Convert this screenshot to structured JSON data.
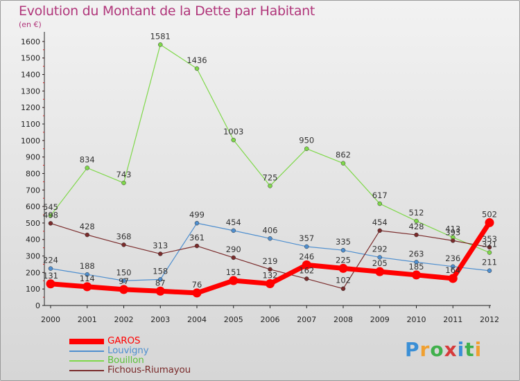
{
  "title": "Evolution du Montant de la Dette par Habitant",
  "subtitle": "(en €)",
  "logo": {
    "letters": [
      "P",
      "r",
      "o",
      "x",
      "i",
      "t",
      "i"
    ],
    "colors": [
      "#3a8fd6",
      "#f0a030",
      "#3fb04b",
      "#d63a3a",
      "#3a8fd6",
      "#3fb04b",
      "#f0a030"
    ]
  },
  "chart_data": {
    "type": "line",
    "title": "Evolution du Montant de la Dette par Habitant",
    "ylabel": "(en €)",
    "xlabel": "",
    "x": [
      "2000",
      "2001",
      "2002",
      "2003",
      "2004",
      "2005",
      "2006",
      "2007",
      "2008",
      "2009",
      "2010",
      "2011",
      "2012"
    ],
    "ylim": [
      0,
      1650
    ],
    "yticks": [
      0,
      100,
      200,
      300,
      400,
      500,
      600,
      700,
      800,
      900,
      1000,
      1100,
      1200,
      1300,
      1400,
      1500,
      1600
    ],
    "grid": false,
    "legend_position": "bottom-left",
    "series": [
      {
        "name": "GAROS",
        "color": "#ff0000",
        "width": 7,
        "marker": 6.5,
        "emphasis": true,
        "values": [
          131,
          114,
          97,
          87,
          76,
          151,
          132,
          246,
          225,
          205,
          185,
          164,
          502
        ]
      },
      {
        "name": "Louvigny",
        "color": "#4f8fcf",
        "width": 1.2,
        "marker": 3,
        "values": [
          224,
          188,
          150,
          158,
          499,
          454,
          406,
          357,
          335,
          292,
          263,
          236,
          211
        ]
      },
      {
        "name": "Bouillon",
        "color": "#7fd84a",
        "width": 1.2,
        "marker": 3,
        "values": [
          545,
          834,
          743,
          1581,
          1436,
          1003,
          725,
          950,
          862,
          617,
          512,
          413,
          321
        ]
      },
      {
        "name": "Fichous-Riumayou",
        "color": "#7a2b2b",
        "width": 1.2,
        "marker": 3,
        "values": [
          498,
          428,
          368,
          313,
          361,
          290,
          219,
          162,
          102,
          454,
          428,
          393,
          353
        ]
      }
    ],
    "data_labels": [
      {
        "series": "GAROS",
        "labels": [
          "131",
          "114",
          "97",
          "87",
          "76",
          "151",
          "132",
          "246",
          "225",
          "205",
          "185",
          "164",
          "502"
        ]
      },
      {
        "series": "Louvigny",
        "labels": [
          "224",
          "188",
          "150",
          "158",
          "499",
          "454",
          "406",
          "357",
          "335",
          "292",
          "263",
          "236",
          "211"
        ]
      },
      {
        "series": "Bouillon",
        "labels": [
          "545",
          "834",
          "743",
          "1581",
          "1436",
          "1003",
          "725",
          "950",
          "862",
          "617",
          "512",
          "413",
          "321"
        ]
      },
      {
        "series": "Fichous-Riumayou",
        "labels": [
          "498",
          "428",
          "368",
          "313",
          "361",
          "290",
          "219",
          "162",
          "102",
          "454",
          "428",
          "393",
          "353"
        ]
      }
    ]
  }
}
